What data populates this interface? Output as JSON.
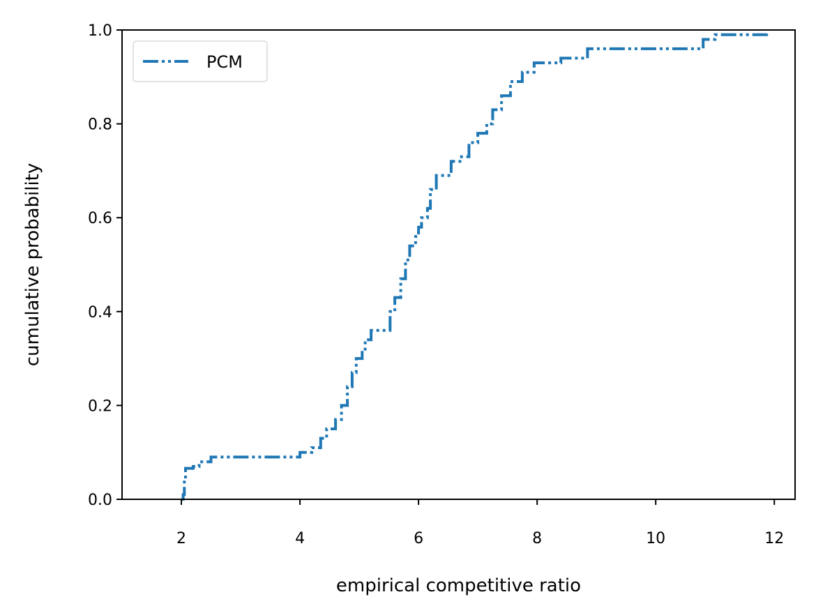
{
  "chart_data": {
    "type": "line",
    "title": "",
    "xlabel": "empirical competitive ratio",
    "ylabel": "cumulative probability",
    "xlim": [
      1.0,
      12.35
    ],
    "ylim": [
      0.0,
      1.0
    ],
    "xticks": [
      2,
      4,
      6,
      8,
      10,
      12
    ],
    "yticks": [
      0.0,
      0.2,
      0.4,
      0.6,
      0.8,
      1.0
    ],
    "xtick_labels": [
      "2",
      "4",
      "6",
      "8",
      "10",
      "12"
    ],
    "ytick_labels": [
      "0.0",
      "0.2",
      "0.4",
      "0.6",
      "0.8",
      "1.0"
    ],
    "grid": false,
    "legend_position": "top-left",
    "series": [
      {
        "name": "PCM",
        "color": "#1f77b4",
        "line_style": "dash-dot-dot",
        "points": [
          [
            2.0,
            0.0
          ],
          [
            2.03,
            0.01
          ],
          [
            2.05,
            0.04
          ],
          [
            2.07,
            0.066
          ],
          [
            2.2,
            0.07
          ],
          [
            2.3,
            0.08
          ],
          [
            2.5,
            0.09
          ],
          [
            3.0,
            0.09
          ],
          [
            3.5,
            0.09
          ],
          [
            3.85,
            0.09
          ],
          [
            4.0,
            0.1
          ],
          [
            4.2,
            0.11
          ],
          [
            4.35,
            0.13
          ],
          [
            4.45,
            0.15
          ],
          [
            4.6,
            0.17
          ],
          [
            4.7,
            0.2
          ],
          [
            4.8,
            0.24
          ],
          [
            4.88,
            0.27
          ],
          [
            4.95,
            0.3
          ],
          [
            5.05,
            0.32
          ],
          [
            5.1,
            0.34
          ],
          [
            5.2,
            0.36
          ],
          [
            5.5,
            0.36
          ],
          [
            5.52,
            0.4
          ],
          [
            5.6,
            0.43
          ],
          [
            5.7,
            0.47
          ],
          [
            5.78,
            0.51
          ],
          [
            5.85,
            0.54
          ],
          [
            5.95,
            0.56
          ],
          [
            6.0,
            0.58
          ],
          [
            6.05,
            0.6
          ],
          [
            6.15,
            0.62
          ],
          [
            6.2,
            0.66
          ],
          [
            6.3,
            0.69
          ],
          [
            6.45,
            0.69
          ],
          [
            6.55,
            0.72
          ],
          [
            6.7,
            0.73
          ],
          [
            6.85,
            0.76
          ],
          [
            7.0,
            0.78
          ],
          [
            7.15,
            0.8
          ],
          [
            7.25,
            0.83
          ],
          [
            7.4,
            0.86
          ],
          [
            7.55,
            0.89
          ],
          [
            7.75,
            0.91
          ],
          [
            7.95,
            0.93
          ],
          [
            8.3,
            0.93
          ],
          [
            8.4,
            0.94
          ],
          [
            8.8,
            0.94
          ],
          [
            8.85,
            0.96
          ],
          [
            9.5,
            0.96
          ],
          [
            10.0,
            0.96
          ],
          [
            10.65,
            0.96
          ],
          [
            10.8,
            0.98
          ],
          [
            11.0,
            0.99
          ],
          [
            11.5,
            0.99
          ],
          [
            11.85,
            0.99
          ],
          [
            11.87,
            1.0
          ]
        ]
      }
    ]
  }
}
